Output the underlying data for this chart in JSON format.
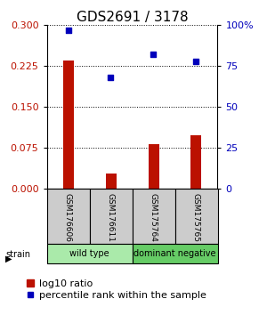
{
  "title": "GDS2691 / 3178",
  "samples": [
    "GSM176606",
    "GSM176611",
    "GSM175764",
    "GSM175765"
  ],
  "log10_ratio": [
    0.235,
    0.028,
    0.082,
    0.098
  ],
  "percentile_rank": [
    97,
    68,
    82,
    78
  ],
  "groups": [
    {
      "label": "wild type",
      "indices": [
        0,
        1
      ],
      "color": "#aaeaaa"
    },
    {
      "label": "dominant negative",
      "indices": [
        2,
        3
      ],
      "color": "#66cc66"
    }
  ],
  "left_ylim": [
    0,
    0.3
  ],
  "right_ylim": [
    0,
    100
  ],
  "left_yticks": [
    0,
    0.075,
    0.15,
    0.225,
    0.3
  ],
  "right_yticks": [
    0,
    25,
    50,
    75,
    100
  ],
  "right_yticklabels": [
    "0",
    "25",
    "50",
    "75",
    "100%"
  ],
  "bar_color": "#BB1100",
  "scatter_color": "#0000BB",
  "bar_width": 0.25,
  "label_area_color": "#cccccc",
  "title_fontsize": 11,
  "tick_fontsize": 8,
  "legend_fontsize": 8
}
